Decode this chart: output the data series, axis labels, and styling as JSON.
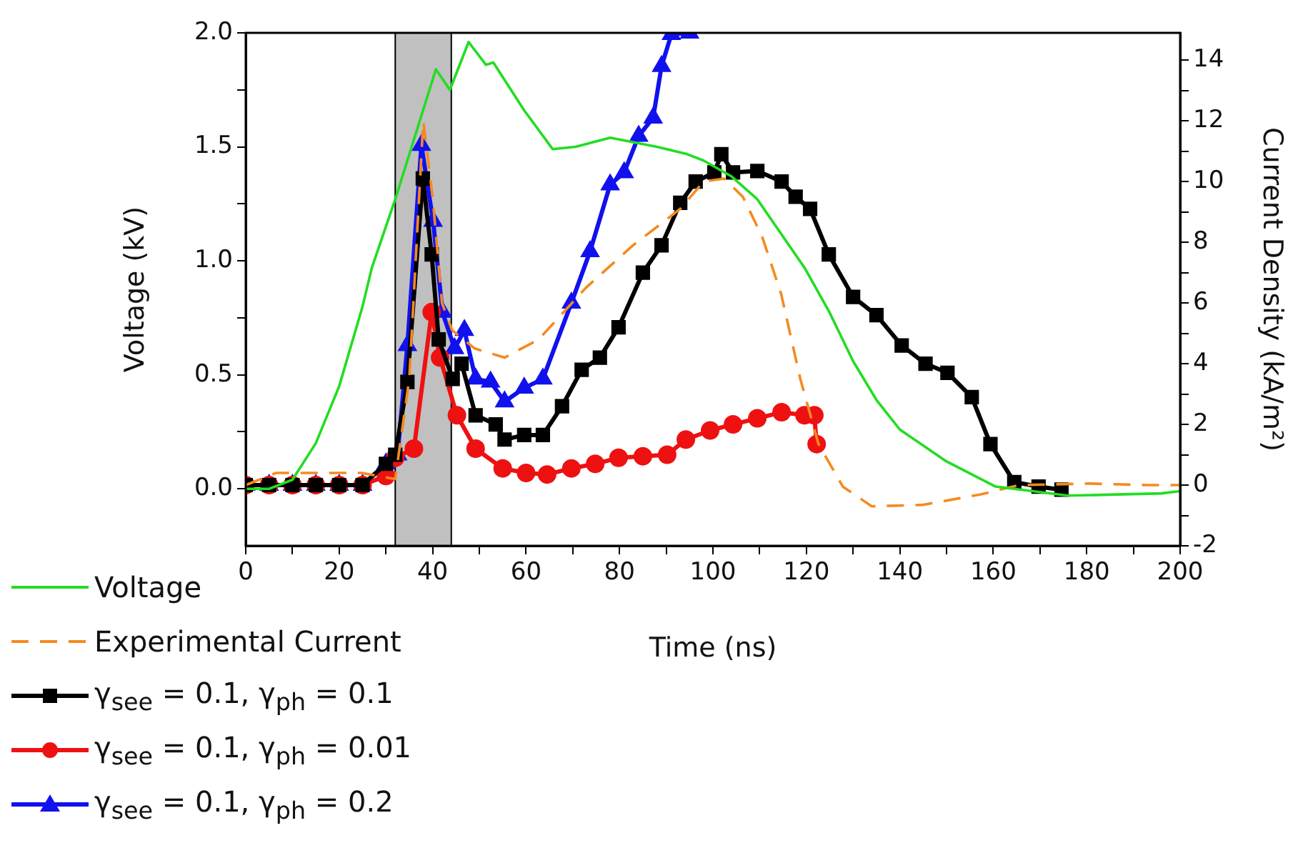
{
  "chart_data": {
    "type": "line",
    "xlabel": "Time (ns)",
    "ylabel": "Voltage (kV)",
    "y2label": "Current Density (kA/m²)",
    "xlim": [
      0,
      200
    ],
    "xticks": [
      0,
      {
        "value": 10,
        "label": null
      },
      20,
      {
        "value": 30,
        "label": null
      },
      40,
      {
        "value": 50,
        "label": null
      },
      60,
      {
        "value": 70,
        "label": null
      },
      80,
      {
        "value": 90,
        "label": null
      },
      100,
      {
        "value": 110,
        "label": null
      },
      120,
      {
        "value": 130,
        "label": null
      },
      140,
      {
        "value": 150,
        "label": null
      },
      160,
      {
        "value": 170,
        "label": null
      },
      180,
      {
        "value": 190,
        "label": null
      },
      200
    ],
    "ylim": [
      -0.25,
      2.0
    ],
    "yticks": [
      {
        "value": 0,
        "label": "0.0"
      },
      {
        "value": 0.25,
        "label": null
      },
      {
        "value": 0.5,
        "label": "0.5"
      },
      {
        "value": 0.75,
        "label": null
      },
      {
        "value": 1,
        "label": "1.0"
      },
      {
        "value": 1.25,
        "label": null
      },
      {
        "value": 1.5,
        "label": "1.5"
      },
      {
        "value": 1.75,
        "label": null
      },
      {
        "value": 2,
        "label": "2.0"
      }
    ],
    "y2lim": [
      -2,
      14.9
    ],
    "y2ticks": [
      -2,
      {
        "value": -1,
        "label": null
      },
      0,
      {
        "value": 1,
        "label": null
      },
      2,
      {
        "value": 3,
        "label": null
      },
      4,
      {
        "value": 5,
        "label": null
      },
      6,
      {
        "value": 7,
        "label": null
      },
      8,
      {
        "value": 9,
        "label": null
      },
      10,
      {
        "value": 11,
        "label": null
      },
      12,
      {
        "value": 13,
        "label": null
      },
      14
    ],
    "grid": false,
    "legend": "bottom left",
    "bands": [
      {
        "axis": "x",
        "from": 32,
        "to": 44,
        "color": "#c0c0c0"
      }
    ],
    "series": [
      {
        "name": "Voltage",
        "color": "#22dd22",
        "marker": "none",
        "line_style": "solid",
        "x": [
          0,
          5,
          10,
          15,
          20,
          25,
          27,
          32,
          40.7,
          43.7,
          47.7,
          51.4,
          53,
          59.6,
          65.7,
          70.6,
          78,
          88,
          94.2,
          98,
          104,
          109.5,
          119.6,
          124.8,
          130,
          135,
          140,
          150,
          160.5,
          176,
          196,
          200
        ],
        "values": [
          0,
          0,
          0.04,
          0.2,
          0.45,
          0.8,
          0.97,
          1.27,
          1.84,
          1.75,
          1.96,
          1.86,
          1.87,
          1.66,
          1.49,
          1.5,
          1.54,
          1.5,
          1.47,
          1.44,
          1.37,
          1.27,
          0.97,
          0.78,
          0.56,
          0.39,
          0.26,
          0.12,
          0.01,
          -0.03,
          -0.02,
          -0.01
        ]
      },
      {
        "name": "Experimental Current",
        "color": "#f58a1f",
        "axis": "y2",
        "marker": "none",
        "line_style": "dashed",
        "x": [
          0,
          6.5,
          14.7,
          24.8,
          32,
          35,
          38,
          40,
          42,
          44.2,
          49,
          55.4,
          62.7,
          72.8,
          82.9,
          93,
          98,
          102.4,
          106.4,
          110.5,
          114.6,
          118.7,
          122.6,
          127.8,
          134,
          145,
          157.5,
          165.5,
          180.7,
          193,
          200
        ],
        "values": [
          0,
          0.4,
          0.4,
          0.4,
          0.2,
          3.5,
          12,
          9.5,
          6,
          5.1,
          4.5,
          4.2,
          4.8,
          6.5,
          7.9,
          9.1,
          10.0,
          10.1,
          9.5,
          8.2,
          6.3,
          3.5,
          1.35,
          -0.05,
          -0.7,
          -0.65,
          -0.3,
          0,
          0.05,
          0,
          0
        ]
      },
      {
        "name": "γ$_{see}$ = 0.1, γ$_{ph}$ = 0.1",
        "color": "#000000",
        "axis": "y2",
        "marker": "square",
        "line_style": "solid",
        "x": [
          0,
          5,
          10,
          15,
          20,
          25,
          30,
          32,
          34.6,
          37.9,
          39.8,
          41.3,
          44.3,
          46.2,
          49.2,
          53.5,
          55.4,
          59.6,
          63.6,
          67.7,
          71.9,
          75.8,
          79.8,
          85,
          89,
          93,
          96.3,
          100.3,
          101.8,
          104.3,
          109.5,
          114.7,
          117.7,
          120.8,
          124.8,
          130,
          135,
          140.4,
          145.5,
          150.2,
          155.4,
          159.4,
          164.5,
          169.7,
          174.6
        ],
        "values": [
          0,
          0,
          0,
          0,
          0,
          0,
          0.7,
          1.0,
          3.4,
          10.1,
          7.6,
          4.8,
          3.5,
          4.0,
          2.3,
          2.0,
          1.5,
          1.65,
          1.65,
          2.6,
          3.8,
          4.2,
          5.2,
          7.0,
          7.9,
          9.3,
          10.0,
          10.3,
          10.9,
          10.3,
          10.35,
          10.0,
          9.5,
          9.1,
          7.6,
          6.2,
          5.6,
          4.6,
          4.0,
          3.7,
          2.9,
          1.35,
          0.1,
          -0.05,
          -0.15
        ]
      },
      {
        "name": "γ$_{see}$ = 0.1, γ$_{ph}$ = 0.01",
        "color": "#ee1111",
        "axis": "y2",
        "marker": "circle",
        "line_style": "solid",
        "x": [
          0,
          5,
          10,
          15,
          20,
          25,
          30,
          32,
          36,
          39.8,
          41.6,
          45.2,
          49.2,
          55,
          60,
          64.5,
          69.7,
          74.8,
          79.8,
          85,
          90.2,
          94.2,
          99.4,
          104.3,
          109.5,
          114.7,
          119.6,
          121.7,
          122.2
        ],
        "values": [
          0,
          0,
          0,
          0,
          0,
          0,
          0.3,
          0.9,
          1.2,
          5.7,
          4.2,
          2.3,
          1.2,
          0.55,
          0.4,
          0.35,
          0.55,
          0.7,
          0.9,
          0.95,
          1.0,
          1.5,
          1.8,
          2.0,
          2.2,
          2.4,
          2.3,
          2.3,
          1.35
        ]
      },
      {
        "name": "γ$_{see}$ = 0.1, γ$_{ph}$ = 0.2",
        "color": "#1111ee",
        "axis": "y2",
        "marker": "triangle",
        "line_style": "solid",
        "x": [
          0,
          5,
          10,
          15,
          20,
          25,
          30,
          32.5,
          34.6,
          37.6,
          40.1,
          42.1,
          44.7,
          46.8,
          49.2,
          52.4,
          55.4,
          59.6,
          63.6,
          69.7,
          73.7,
          78,
          81,
          84.1,
          87.2,
          89,
          91.1,
          95
        ],
        "values": [
          0,
          0,
          0,
          0,
          0,
          0,
          0.7,
          1.0,
          4.6,
          11.2,
          8.7,
          5.7,
          4.5,
          5.1,
          3.5,
          3.4,
          2.75,
          3.2,
          3.5,
          6.0,
          7.7,
          9.9,
          10.3,
          11.5,
          12.1,
          13.8,
          14.85,
          14.9
        ]
      }
    ]
  }
}
